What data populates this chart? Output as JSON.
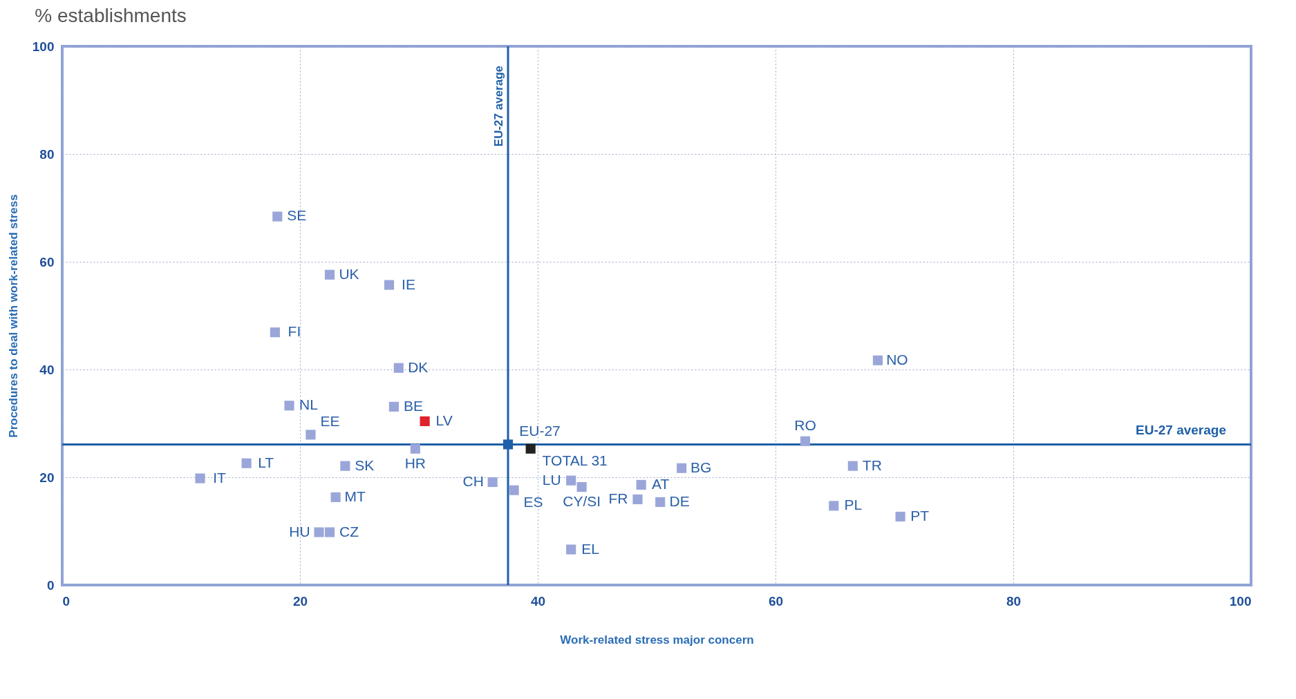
{
  "chart_data": {
    "type": "scatter",
    "title": "% establishments",
    "xlabel": "Work-related stress major concern",
    "ylabel": "Procedures to deal with work-related stress",
    "xlim": [
      0,
      100
    ],
    "ylim": [
      0,
      100
    ],
    "xticks": [
      0,
      20,
      40,
      60,
      80,
      100
    ],
    "yticks": [
      0,
      20,
      40,
      60,
      80,
      100
    ],
    "grid": true,
    "marker": "square",
    "series": [
      {
        "color": "#9aa6d9",
        "x": [
          18.1,
          22.5,
          27.5,
          17.9,
          28.3,
          68.6,
          19.1,
          27.9,
          20.9,
          29.7,
          62.5,
          15.5,
          23.8,
          52.1,
          66.5,
          11.6,
          36.2,
          42.8,
          43.7,
          48.7,
          38.0,
          23.0,
          48.4,
          50.3,
          64.9,
          70.5,
          21.6,
          22.5,
          42.8
        ],
        "values": [
          68.4,
          57.6,
          55.7,
          46.9,
          40.3,
          41.7,
          33.3,
          33.1,
          27.9,
          25.3,
          26.7,
          22.6,
          22.1,
          21.7,
          22.1,
          19.8,
          19.1,
          19.4,
          18.2,
          18.6,
          17.6,
          16.3,
          15.9,
          15.4,
          14.7,
          12.7,
          9.8,
          9.8,
          6.6
        ]
      },
      {
        "color": "#e0202a",
        "x": [
          30.5
        ],
        "values": [
          30.4
        ]
      },
      {
        "color": "#1d5fa8",
        "x": [
          37.5
        ],
        "values": [
          26.1
        ]
      },
      {
        "color": "#222222",
        "x": [
          39.4
        ],
        "values": [
          25.3
        ]
      }
    ],
    "ref_lines": [
      {
        "axis": "x",
        "value": 37.5,
        "label": "EU-27 average",
        "color": "#1d5fa8"
      },
      {
        "axis": "y",
        "value": 26.1,
        "label": "EU-27 average",
        "color": "#1d5fa8"
      }
    ],
    "annotations": [
      {
        "text": "SE",
        "x": 18.1,
        "y": 68.4
      },
      {
        "text": "UK",
        "x": 22.5,
        "y": 57.6
      },
      {
        "text": "IE",
        "x": 27.5,
        "y": 55.7
      },
      {
        "text": "FI",
        "x": 17.9,
        "y": 46.9
      },
      {
        "text": "DK",
        "x": 28.3,
        "y": 40.3
      },
      {
        "text": "NO",
        "x": 68.6,
        "y": 41.7
      },
      {
        "text": "NL",
        "x": 19.1,
        "y": 33.3
      },
      {
        "text": "BE",
        "x": 27.9,
        "y": 33.1
      },
      {
        "text": "EE",
        "x": 20.9,
        "y": 27.9
      },
      {
        "text": "HR",
        "x": 29.7,
        "y": 25.3
      },
      {
        "text": "RO",
        "x": 62.5,
        "y": 26.7
      },
      {
        "text": "LT",
        "x": 15.5,
        "y": 22.6
      },
      {
        "text": "SK",
        "x": 23.8,
        "y": 22.1
      },
      {
        "text": "BG",
        "x": 52.1,
        "y": 21.7
      },
      {
        "text": "TR",
        "x": 66.5,
        "y": 22.1
      },
      {
        "text": "IT",
        "x": 11.6,
        "y": 19.8
      },
      {
        "text": "CH",
        "x": 36.2,
        "y": 19.1
      },
      {
        "text": "LU",
        "x": 42.8,
        "y": 19.4
      },
      {
        "text": "CY/SI",
        "x": 43.7,
        "y": 18.2
      },
      {
        "text": "AT",
        "x": 48.7,
        "y": 18.6
      },
      {
        "text": "ES",
        "x": 38.0,
        "y": 17.6
      },
      {
        "text": "MT",
        "x": 23.0,
        "y": 16.3
      },
      {
        "text": "FR",
        "x": 48.4,
        "y": 15.9
      },
      {
        "text": "DE",
        "x": 50.3,
        "y": 15.4
      },
      {
        "text": "PL",
        "x": 64.9,
        "y": 14.7
      },
      {
        "text": "PT",
        "x": 70.5,
        "y": 12.7
      },
      {
        "text": "HU",
        "x": 21.6,
        "y": 9.8
      },
      {
        "text": "CZ",
        "x": 22.5,
        "y": 9.8
      },
      {
        "text": "EL",
        "x": 42.8,
        "y": 6.6
      },
      {
        "text": "LV",
        "x": 30.5,
        "y": 30.4
      },
      {
        "text": "EU-27",
        "x": 37.5,
        "y": 26.1
      },
      {
        "text": "TOTAL 31",
        "x": 39.4,
        "y": 25.3
      }
    ]
  }
}
